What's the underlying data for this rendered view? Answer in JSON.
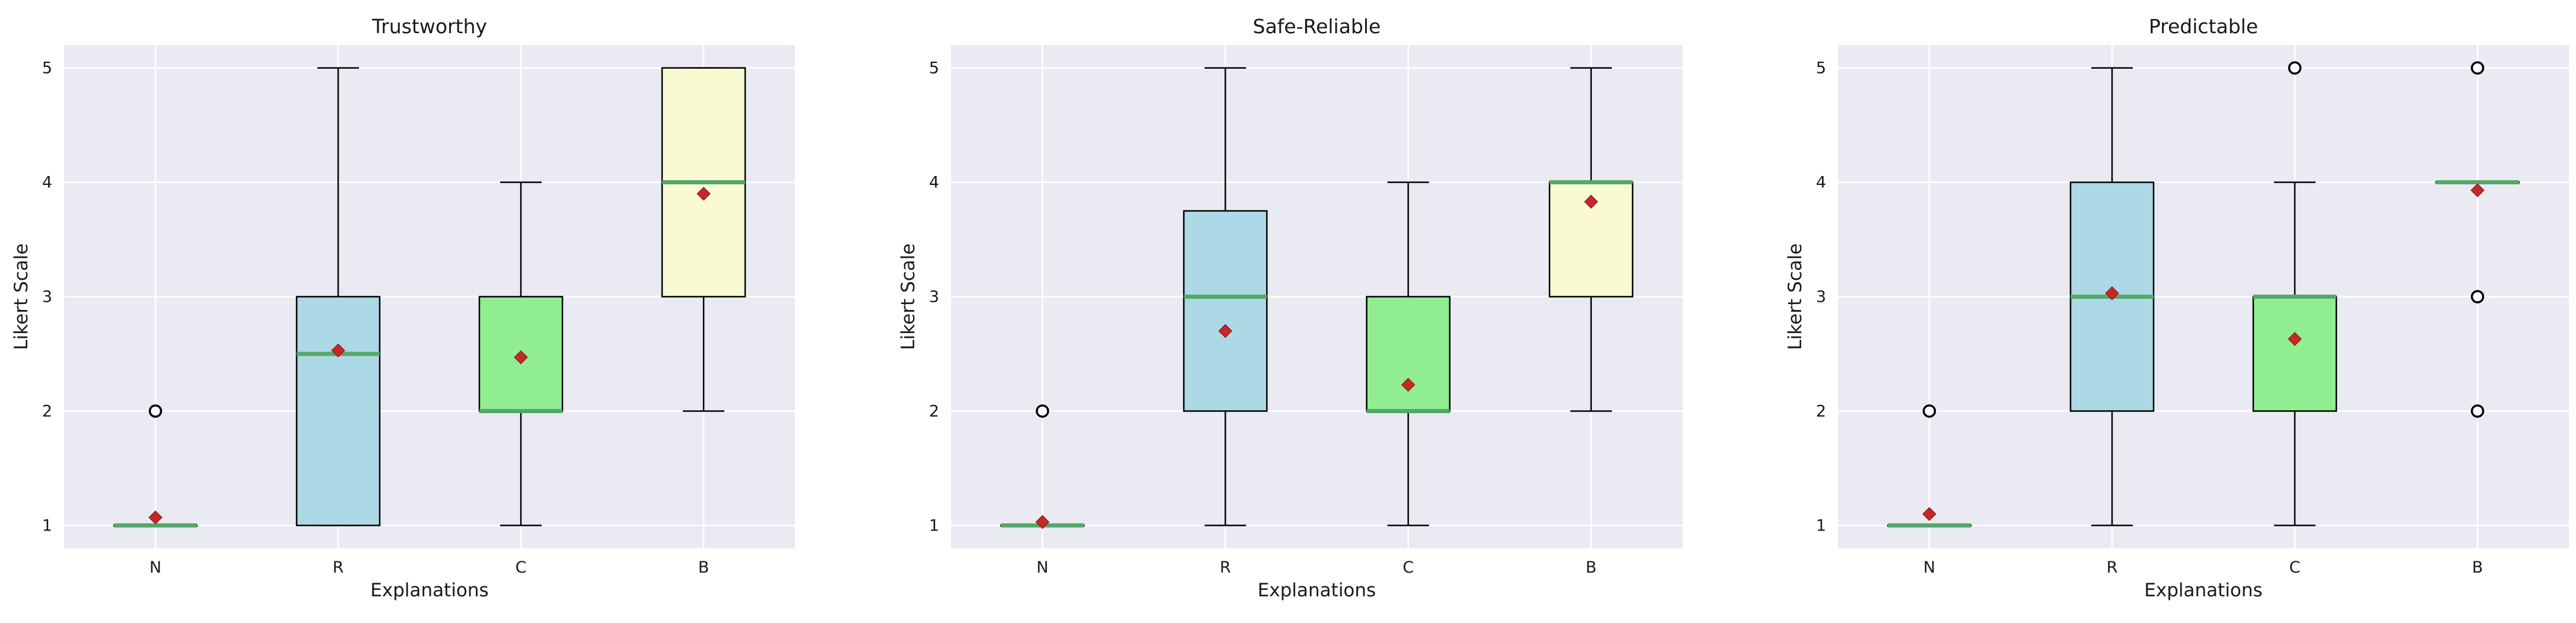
{
  "chart_data": [
    {
      "type": "box",
      "title": "Trustworthy",
      "xlabel": "Explanations",
      "ylabel": "Likert Scale",
      "ylim": [
        0.8,
        5.2
      ],
      "yticks": [
        1,
        2,
        3,
        4,
        5
      ],
      "categories": [
        "N",
        "R",
        "C",
        "B"
      ],
      "boxes": [
        {
          "category": "N",
          "whislo": 1,
          "q1": 1,
          "median": 1,
          "q3": 1,
          "whishi": 1,
          "mean": 1.07,
          "fliers": [
            2
          ],
          "color": "#add8e6"
        },
        {
          "category": "R",
          "whislo": 1,
          "q1": 1,
          "median": 2.5,
          "q3": 3,
          "whishi": 5,
          "mean": 2.53,
          "fliers": [],
          "color": "#add8e6"
        },
        {
          "category": "C",
          "whislo": 1,
          "q1": 2,
          "median": 2,
          "q3": 3,
          "whishi": 4,
          "mean": 2.47,
          "fliers": [],
          "color": "#90ee90"
        },
        {
          "category": "B",
          "whislo": 2,
          "q1": 3,
          "median": 4,
          "q3": 5,
          "whishi": 5,
          "mean": 3.9,
          "fliers": [],
          "color": "#fafad2"
        }
      ]
    },
    {
      "type": "box",
      "title": "Safe-Reliable",
      "xlabel": "Explanations",
      "ylabel": "Likert Scale",
      "ylim": [
        0.8,
        5.2
      ],
      "yticks": [
        1,
        2,
        3,
        4,
        5
      ],
      "categories": [
        "N",
        "R",
        "C",
        "B"
      ],
      "boxes": [
        {
          "category": "N",
          "whislo": 1,
          "q1": 1,
          "median": 1,
          "q3": 1,
          "whishi": 1,
          "mean": 1.03,
          "fliers": [
            2
          ],
          "color": "#add8e6"
        },
        {
          "category": "R",
          "whislo": 1,
          "q1": 2,
          "median": 3,
          "q3": 3.75,
          "whishi": 5,
          "mean": 2.7,
          "fliers": [],
          "color": "#add8e6"
        },
        {
          "category": "C",
          "whislo": 1,
          "q1": 2,
          "median": 2,
          "q3": 3,
          "whishi": 4,
          "mean": 2.23,
          "fliers": [],
          "color": "#90ee90"
        },
        {
          "category": "B",
          "whislo": 2,
          "q1": 3,
          "median": 4,
          "q3": 4,
          "whishi": 5,
          "mean": 3.83,
          "fliers": [],
          "color": "#fafad2"
        }
      ]
    },
    {
      "type": "box",
      "title": "Predictable",
      "xlabel": "Explanations",
      "ylabel": "Likert Scale",
      "ylim": [
        0.8,
        5.2
      ],
      "yticks": [
        1,
        2,
        3,
        4,
        5
      ],
      "categories": [
        "N",
        "R",
        "C",
        "B"
      ],
      "boxes": [
        {
          "category": "N",
          "whislo": 1,
          "q1": 1,
          "median": 1,
          "q3": 1,
          "whishi": 1,
          "mean": 1.1,
          "fliers": [
            2
          ],
          "color": "#add8e6"
        },
        {
          "category": "R",
          "whislo": 1,
          "q1": 2,
          "median": 3,
          "q3": 4,
          "whishi": 5,
          "mean": 3.03,
          "fliers": [],
          "color": "#add8e6"
        },
        {
          "category": "C",
          "whislo": 1,
          "q1": 2,
          "median": 3,
          "q3": 3,
          "whishi": 4,
          "mean": 2.63,
          "fliers": [
            5
          ],
          "color": "#90ee90"
        },
        {
          "category": "B",
          "whislo": 4,
          "q1": 4,
          "median": 4,
          "q3": 4,
          "whishi": 4,
          "mean": 3.93,
          "fliers": [
            5,
            3,
            2
          ],
          "color": "#fafad2"
        }
      ]
    }
  ]
}
